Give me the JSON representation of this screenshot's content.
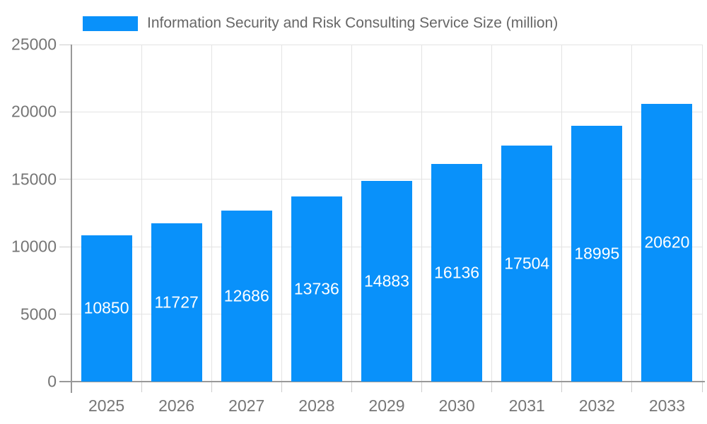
{
  "chart_data": {
    "type": "bar",
    "title": "Information Security and Risk Consulting Service Size (million)",
    "categories": [
      "2025",
      "2026",
      "2027",
      "2028",
      "2029",
      "2030",
      "2031",
      "2032",
      "2033"
    ],
    "values": [
      10850,
      11727,
      12686,
      13736,
      14883,
      16136,
      17504,
      18995,
      20620
    ],
    "xlabel": "",
    "ylabel": "",
    "ylim": [
      0,
      25000
    ],
    "y_ticks": [
      0,
      5000,
      10000,
      15000,
      20000,
      25000
    ],
    "grid": true,
    "legend_position": "top-left",
    "bar_value_labels_inside": true,
    "colors": {
      "bar": "#0991fa",
      "value_label": "#ffffff",
      "gridline": "#e3e3e3",
      "tick": "#cccccc",
      "axis_line": "#999999",
      "axis_label": "#757575",
      "legend_text": "#666666",
      "background": "#ffffff"
    }
  }
}
